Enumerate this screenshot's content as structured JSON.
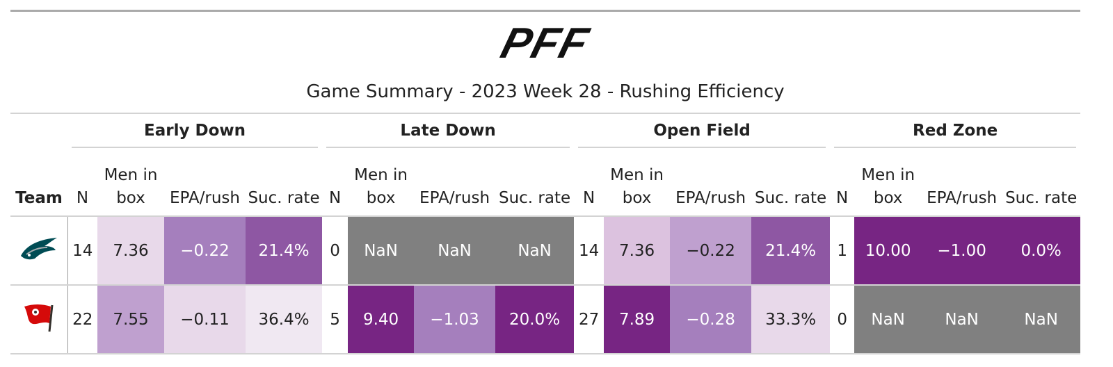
{
  "header": {
    "logo": "PFF",
    "title": "Game Summary - 2023 Week 28 - Rushing Efficiency"
  },
  "table": {
    "team_header": "Team",
    "groups": [
      "Early Down",
      "Late Down",
      "Open Field",
      "Red Zone"
    ],
    "columns": [
      "N",
      "Men in box",
      "EPA/rush",
      "Suc. rate"
    ],
    "rows": [
      {
        "cells": [
          "14",
          "7.36",
          "−0.22",
          "21.4%",
          "0",
          "NaN",
          "NaN",
          "NaN",
          "14",
          "7.36",
          "−0.22",
          "21.4%",
          "1",
          "10.00",
          "−1.00",
          "0.0%"
        ],
        "colors": [
          "#ffffff",
          "#e8d9ea",
          "#a57fbd",
          "#8e57a3",
          "#ffffff",
          "#808080",
          "#808080",
          "#808080",
          "#ffffff",
          "#dcc2df",
          "#bfa0cf",
          "#8e57a3",
          "#ffffff",
          "#772583",
          "#772583",
          "#772583"
        ]
      },
      {
        "cells": [
          "22",
          "7.55",
          "−0.11",
          "36.4%",
          "5",
          "9.40",
          "−1.03",
          "20.0%",
          "27",
          "7.89",
          "−0.28",
          "33.3%",
          "0",
          "NaN",
          "NaN",
          "NaN"
        ],
        "colors": [
          "#ffffff",
          "#bfa0cf",
          "#e8d9ea",
          "#f0e8f2",
          "#ffffff",
          "#772583",
          "#a57fbd",
          "#772583",
          "#ffffff",
          "#772583",
          "#a57fbd",
          "#e8d9ea",
          "#ffffff",
          "#808080",
          "#808080",
          "#808080"
        ]
      }
    ]
  }
}
